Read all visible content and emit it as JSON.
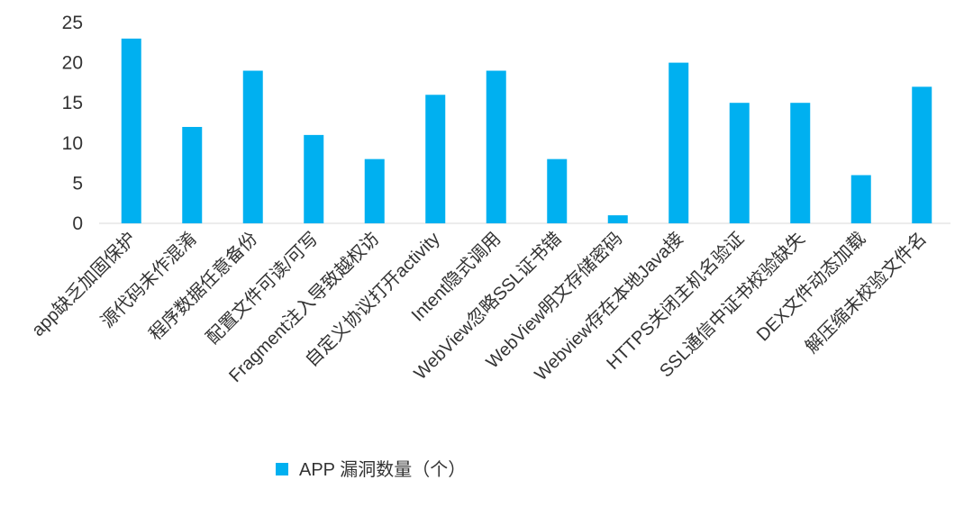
{
  "chart_data": {
    "type": "bar",
    "title": "",
    "xlabel": "",
    "ylabel": "",
    "ylim": [
      0,
      25
    ],
    "yticks": [
      0,
      5,
      10,
      15,
      20,
      25
    ],
    "grid": false,
    "legend_placement": "bottom",
    "categories": [
      "app缺乏加固保护",
      "源代码未作混淆",
      "程序数据任意备份",
      "配置文件可读/可写",
      "Fragment注入导致越权访",
      "自定义协议打开activity",
      "Intent隐式调用",
      "WebView忽略SSL证书错",
      "WebView明文存储密码",
      "Webview存在本地Java接",
      "HTTPS关闭主机名验证",
      "SSL通信中证书校验缺失",
      "DEX文件动态加载",
      "解压缩未校验文件名"
    ],
    "series": [
      {
        "name": "APP 漏洞数量（个）",
        "color": "#00b0f0",
        "values": [
          23,
          12,
          19,
          11,
          8,
          16,
          19,
          8,
          1,
          20,
          15,
          15,
          6,
          17
        ]
      }
    ]
  }
}
